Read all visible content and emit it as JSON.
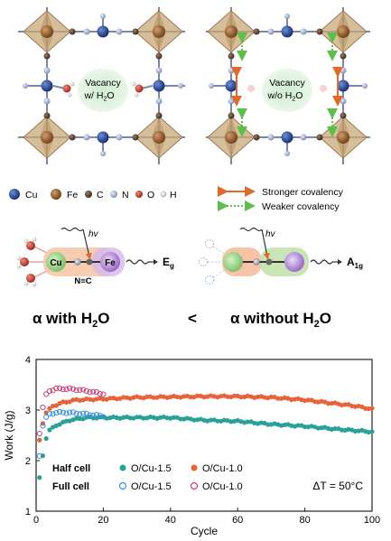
{
  "panel_a": {
    "left_vacancy_line1": "Vacancy",
    "left_vacancy_line2": "w/ H",
    "left_vacancy_sub": "2",
    "left_vacancy_o": "O",
    "right_vacancy_line1": "Vacancy",
    "right_vacancy_line2": "w/o H",
    "right_vacancy_sub": "2",
    "right_vacancy_o": "O"
  },
  "atom_legend": [
    {
      "label": "Cu",
      "color": "#1f3f8f"
    },
    {
      "label": "Fe",
      "color": "#8a5a2b"
    },
    {
      "label": "C",
      "color": "#5a3a2a"
    },
    {
      "label": "N",
      "color": "#9aa6c8"
    },
    {
      "label": "O",
      "color": "#c0392b"
    },
    {
      "label": "H",
      "color": "#e8e8e8"
    }
  ],
  "covalency_legend": {
    "stronger": "Stronger covalency",
    "weaker": "Weaker covalency",
    "stronger_color": "#e06a2b",
    "weaker_color": "#5bbf4a"
  },
  "chain_labels": {
    "hv": "hv",
    "cu": "Cu",
    "fe": "Fe",
    "nc": "N≡C",
    "eg": "E",
    "eg_sub": "g",
    "a1g": "A",
    "a1g_sub": "1g"
  },
  "comparison": {
    "left": "α with H",
    "left_sub": "2",
    "left_o": "O",
    "symbol": "<",
    "right": "α without H",
    "right_sub": "2",
    "right_o": "O"
  },
  "chart_data": {
    "type": "scatter",
    "xlabel": "Cycle",
    "ylabel": "Work (J/g)",
    "xlim": [
      0,
      100
    ],
    "ylim": [
      1,
      4
    ],
    "xticks": [
      "0",
      "20",
      "40",
      "60",
      "80",
      "100"
    ],
    "yticks": [
      "1",
      "2",
      "3",
      "4"
    ],
    "legend_rows": [
      {
        "label": "Half cell"
      },
      {
        "label": "Full cell"
      }
    ],
    "annotation": "ΔT = 50°C",
    "series": [
      {
        "name": "O/Cu-1.5",
        "group": "Half cell",
        "color": "#2aa198",
        "filled": true,
        "start": 1,
        "end": 100,
        "keypoints": [
          [
            1,
            1.65
          ],
          [
            2,
            2.1
          ],
          [
            3,
            2.45
          ],
          [
            4,
            2.6
          ],
          [
            6,
            2.7
          ],
          [
            10,
            2.8
          ],
          [
            15,
            2.85
          ],
          [
            20,
            2.85
          ],
          [
            30,
            2.85
          ],
          [
            40,
            2.85
          ],
          [
            50,
            2.8
          ],
          [
            60,
            2.78
          ],
          [
            70,
            2.72
          ],
          [
            80,
            2.68
          ],
          [
            90,
            2.62
          ],
          [
            100,
            2.57
          ]
        ]
      },
      {
        "name": "O/Cu-1.0",
        "group": "Half cell",
        "color": "#e8633a",
        "filled": true,
        "start": 1,
        "end": 100,
        "keypoints": [
          [
            1,
            2.4
          ],
          [
            2,
            2.75
          ],
          [
            3,
            2.95
          ],
          [
            5,
            3.08
          ],
          [
            8,
            3.15
          ],
          [
            12,
            3.2
          ],
          [
            20,
            3.22
          ],
          [
            30,
            3.25
          ],
          [
            40,
            3.26
          ],
          [
            50,
            3.27
          ],
          [
            60,
            3.27
          ],
          [
            70,
            3.25
          ],
          [
            80,
            3.2
          ],
          [
            90,
            3.12
          ],
          [
            95,
            3.08
          ],
          [
            100,
            3.02
          ]
        ]
      },
      {
        "name": "O/Cu-1.5",
        "group": "Full cell",
        "color": "#3a8fd6",
        "filled": false,
        "start": 1,
        "end": 20,
        "keypoints": [
          [
            1,
            2.1
          ],
          [
            2,
            2.7
          ],
          [
            3,
            2.85
          ],
          [
            4,
            2.92
          ],
          [
            6,
            2.95
          ],
          [
            10,
            2.95
          ],
          [
            15,
            2.92
          ],
          [
            20,
            2.88
          ]
        ]
      },
      {
        "name": "O/Cu-1.0",
        "group": "Full cell",
        "color": "#c2417a",
        "filled": false,
        "start": 1,
        "end": 20,
        "keypoints": [
          [
            1,
            2.55
          ],
          [
            2,
            3.05
          ],
          [
            3,
            3.3
          ],
          [
            4,
            3.38
          ],
          [
            6,
            3.42
          ],
          [
            10,
            3.42
          ],
          [
            15,
            3.38
          ],
          [
            20,
            3.32
          ]
        ]
      }
    ]
  }
}
